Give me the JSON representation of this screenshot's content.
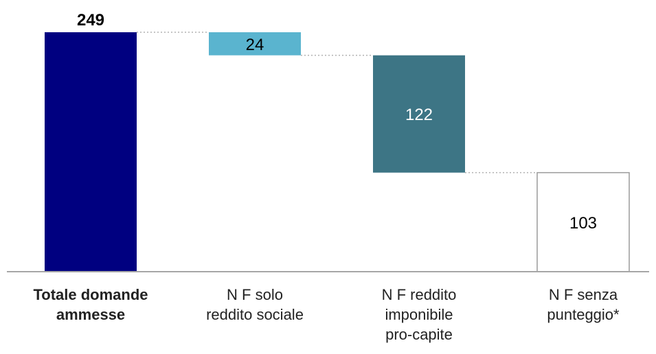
{
  "chart_data": {
    "type": "waterfall",
    "categories": [
      "Totale domande ammesse",
      "N F solo reddito sociale",
      "N F reddito imponibile pro-capite",
      "N F senza punteggio*"
    ],
    "category_lines": [
      [
        "Totale domande",
        "ammesse"
      ],
      [
        "N F solo",
        "reddito sociale"
      ],
      [
        "N F reddito",
        "imponibile",
        "pro-capite"
      ],
      [
        "N F senza",
        "punteggio*"
      ]
    ],
    "values": [
      249,
      24,
      122,
      103
    ],
    "labels": [
      "249",
      "24",
      "122",
      "103"
    ],
    "kinds": [
      "total",
      "decrease",
      "decrease",
      "remainder"
    ],
    "colors": [
      "#000080",
      "#5ab4cf",
      "#3d7585",
      "#ffffff"
    ],
    "label_colors": [
      "#000000",
      "#000000",
      "#ffffff",
      "#000000"
    ],
    "bold_labels": [
      true,
      false,
      false,
      false
    ],
    "ylim": [
      0,
      249
    ],
    "grid": false,
    "legend": "none",
    "connectors": "dotted"
  }
}
